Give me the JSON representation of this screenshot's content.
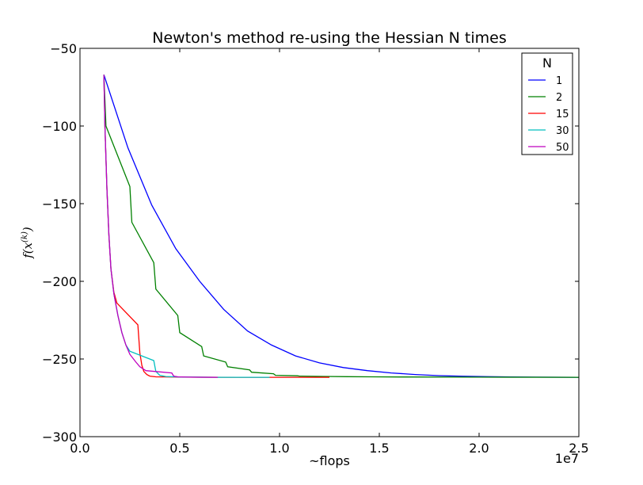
{
  "chart_data": {
    "type": "line",
    "title": "Newton's method re-using the Hessian N times",
    "xlabel": "~flops",
    "ylabel": "f(x^(k))",
    "xlim": [
      0,
      25000000
    ],
    "ylim": [
      -300,
      -50
    ],
    "x_multiplier_label": "1e7",
    "xticks": [
      0,
      5000000,
      10000000,
      15000000,
      20000000,
      25000000
    ],
    "xtick_labels": [
      "0.0",
      "0.5",
      "1.0",
      "1.5",
      "2.0",
      "2.5"
    ],
    "yticks": [
      -300,
      -250,
      -200,
      -150,
      -100,
      -50
    ],
    "ytick_labels": [
      "−300",
      "−250",
      "−200",
      "−150",
      "−100",
      "−50"
    ],
    "grid": false,
    "legend": {
      "title": "N",
      "placement": "top-right"
    },
    "series": [
      {
        "name": "1",
        "color": "#0000ff",
        "points": [
          [
            1200000,
            -67
          ],
          [
            2400000,
            -114
          ],
          [
            3600000,
            -151
          ],
          [
            4800000,
            -179
          ],
          [
            6000000,
            -200
          ],
          [
            7200000,
            -218
          ],
          [
            8400000,
            -232
          ],
          [
            9600000,
            -241
          ],
          [
            10800000,
            -248
          ],
          [
            12000000,
            -252.5
          ],
          [
            13200000,
            -255.5
          ],
          [
            14400000,
            -257.5
          ],
          [
            15600000,
            -259
          ],
          [
            16800000,
            -260
          ],
          [
            18000000,
            -260.7
          ],
          [
            19200000,
            -261.1
          ],
          [
            20400000,
            -261.4
          ],
          [
            21600000,
            -261.6
          ],
          [
            22800000,
            -261.7
          ],
          [
            25000000,
            -261.8
          ]
        ]
      },
      {
        "name": "2",
        "color": "#008000",
        "points": [
          [
            1200000,
            -67
          ],
          [
            1300000,
            -100
          ],
          [
            2500000,
            -139
          ],
          [
            2600000,
            -162
          ],
          [
            3700000,
            -188
          ],
          [
            3800000,
            -205
          ],
          [
            4900000,
            -222
          ],
          [
            5000000,
            -233
          ],
          [
            6100000,
            -242
          ],
          [
            6200000,
            -248
          ],
          [
            7300000,
            -252
          ],
          [
            7400000,
            -255
          ],
          [
            8500000,
            -257
          ],
          [
            8600000,
            -258.5
          ],
          [
            9700000,
            -259.5
          ],
          [
            9800000,
            -260.5
          ],
          [
            10900000,
            -260.8
          ],
          [
            11000000,
            -261
          ],
          [
            12200000,
            -261.2
          ],
          [
            13400000,
            -261.4
          ],
          [
            14600000,
            -261.5
          ],
          [
            16000000,
            -261.6
          ],
          [
            20000000,
            -261.7
          ],
          [
            25000000,
            -261.8
          ]
        ]
      },
      {
        "name": "15",
        "color": "#ff0000",
        "points": [
          [
            1200000,
            -67
          ],
          [
            1250000,
            -100
          ],
          [
            1350000,
            -140
          ],
          [
            1450000,
            -170
          ],
          [
            1550000,
            -192
          ],
          [
            1700000,
            -207
          ],
          [
            1850000,
            -214
          ],
          [
            2900000,
            -228
          ],
          [
            3000000,
            -246
          ],
          [
            3100000,
            -254
          ],
          [
            3200000,
            -258
          ],
          [
            3350000,
            -260
          ],
          [
            3500000,
            -261
          ],
          [
            3800000,
            -261.5
          ],
          [
            5000000,
            -261.7
          ],
          [
            8000000,
            -261.8
          ],
          [
            12500000,
            -261.8
          ]
        ]
      },
      {
        "name": "30",
        "color": "#00bfbf",
        "points": [
          [
            1200000,
            -67
          ],
          [
            1250000,
            -100
          ],
          [
            1350000,
            -140
          ],
          [
            1450000,
            -170
          ],
          [
            1550000,
            -192
          ],
          [
            1700000,
            -208
          ],
          [
            1900000,
            -222
          ],
          [
            2100000,
            -233
          ],
          [
            2300000,
            -241
          ],
          [
            2500000,
            -245
          ],
          [
            3700000,
            -251
          ],
          [
            3800000,
            -258
          ],
          [
            4000000,
            -260.5
          ],
          [
            4300000,
            -261.3
          ],
          [
            5000000,
            -261.6
          ],
          [
            7000000,
            -261.8
          ],
          [
            9500000,
            -261.8
          ]
        ]
      },
      {
        "name": "50",
        "color": "#bf00bf",
        "points": [
          [
            1200000,
            -67
          ],
          [
            1250000,
            -100
          ],
          [
            1350000,
            -140
          ],
          [
            1450000,
            -170
          ],
          [
            1550000,
            -192
          ],
          [
            1700000,
            -208
          ],
          [
            1900000,
            -222
          ],
          [
            2100000,
            -233
          ],
          [
            2300000,
            -241
          ],
          [
            2500000,
            -247
          ],
          [
            2800000,
            -252
          ],
          [
            3000000,
            -255
          ],
          [
            3300000,
            -257.5
          ],
          [
            4600000,
            -259
          ],
          [
            4700000,
            -261
          ],
          [
            4900000,
            -261.5
          ],
          [
            5500000,
            -261.7
          ],
          [
            6900000,
            -261.8
          ]
        ]
      }
    ]
  }
}
